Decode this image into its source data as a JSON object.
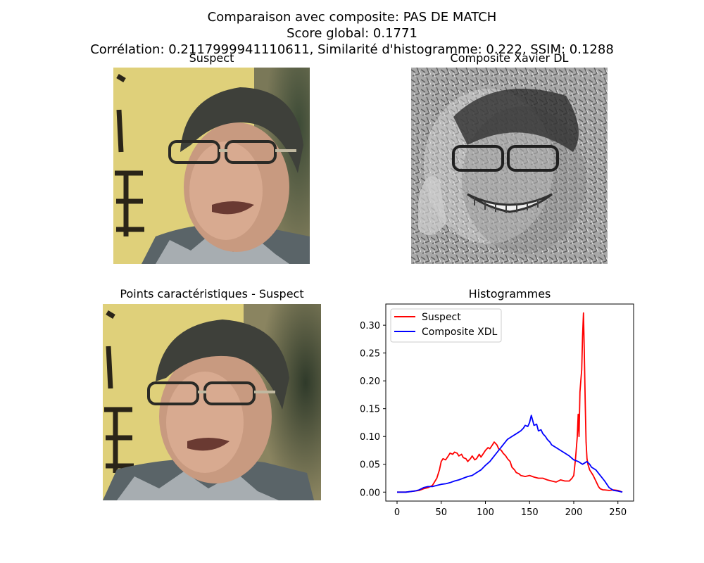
{
  "figure": {
    "title_line1": "Comparaison avec composite: PAS DE MATCH",
    "title_line2": "Score global: 0.1771",
    "title_line3": "Corrélation: 0.2117999941110611, Similarité d'histogramme: 0.222, SSIM: 0.1288"
  },
  "panels": {
    "suspect_title": "Suspect",
    "composite_title": "Composite Xavier DL",
    "keypoints_title": "Points caractéristiques - Suspect",
    "histogram_title": "Histogrammes"
  },
  "colors": {
    "suspect_line": "#ff0000",
    "composite_line": "#0000ff",
    "wall_yellow": "#dfd07a"
  },
  "chart_data": {
    "type": "line",
    "title": "Histogrammes",
    "xlabel": "",
    "ylabel": "",
    "xlim": [
      -12.75,
      267.75
    ],
    "ylim": [
      -0.0161,
      0.3381
    ],
    "xticks": [
      0,
      50,
      100,
      150,
      200,
      250
    ],
    "yticks": [
      0.0,
      0.05,
      0.1,
      0.15,
      0.2,
      0.25,
      0.3
    ],
    "ytick_labels": [
      "0.00",
      "0.05",
      "0.10",
      "0.15",
      "0.20",
      "0.25",
      "0.30"
    ],
    "grid": false,
    "legend_position": "upper-left",
    "series": [
      {
        "name": "Suspect",
        "color": "#ff0000",
        "x": [
          0,
          10,
          20,
          25,
          30,
          35,
          40,
          45,
          48,
          50,
          52,
          55,
          58,
          60,
          63,
          65,
          68,
          70,
          73,
          75,
          78,
          80,
          83,
          85,
          88,
          90,
          93,
          95,
          98,
          100,
          103,
          105,
          108,
          110,
          113,
          115,
          118,
          120,
          123,
          125,
          128,
          130,
          133,
          135,
          138,
          140,
          145,
          150,
          155,
          160,
          165,
          170,
          175,
          180,
          185,
          190,
          195,
          198,
          200,
          202,
          204,
          205,
          206,
          207,
          208,
          209,
          210,
          211,
          212,
          213,
          214,
          215,
          216,
          218,
          220,
          222,
          225,
          228,
          230,
          233,
          235,
          240,
          245,
          250,
          252,
          255
        ],
        "y": [
          0.0,
          0.0,
          0.002,
          0.003,
          0.006,
          0.008,
          0.012,
          0.025,
          0.04,
          0.055,
          0.06,
          0.058,
          0.065,
          0.07,
          0.068,
          0.072,
          0.07,
          0.065,
          0.068,
          0.062,
          0.06,
          0.055,
          0.06,
          0.065,
          0.058,
          0.06,
          0.068,
          0.063,
          0.07,
          0.075,
          0.08,
          0.078,
          0.085,
          0.09,
          0.085,
          0.078,
          0.075,
          0.07,
          0.065,
          0.06,
          0.055,
          0.045,
          0.04,
          0.035,
          0.033,
          0.03,
          0.028,
          0.03,
          0.027,
          0.025,
          0.025,
          0.022,
          0.02,
          0.018,
          0.022,
          0.02,
          0.02,
          0.025,
          0.03,
          0.06,
          0.1,
          0.14,
          0.1,
          0.18,
          0.2,
          0.22,
          0.28,
          0.322,
          0.25,
          0.16,
          0.09,
          0.06,
          0.05,
          0.04,
          0.035,
          0.03,
          0.02,
          0.01,
          0.006,
          0.004,
          0.004,
          0.003,
          0.004,
          0.003,
          0.002,
          0.0
        ]
      },
      {
        "name": "Composite XDL",
        "color": "#0000ff",
        "x": [
          0,
          10,
          20,
          25,
          30,
          35,
          40,
          45,
          50,
          55,
          60,
          65,
          70,
          75,
          80,
          85,
          90,
          95,
          100,
          105,
          110,
          115,
          120,
          125,
          130,
          135,
          140,
          143,
          145,
          148,
          150,
          152,
          155,
          158,
          160,
          163,
          165,
          168,
          170,
          173,
          175,
          180,
          185,
          190,
          195,
          200,
          205,
          210,
          215,
          218,
          220,
          225,
          230,
          235,
          240,
          245,
          250,
          255
        ],
        "y": [
          0.0,
          0.0,
          0.002,
          0.004,
          0.008,
          0.01,
          0.01,
          0.012,
          0.014,
          0.015,
          0.017,
          0.02,
          0.022,
          0.025,
          0.028,
          0.03,
          0.035,
          0.04,
          0.048,
          0.055,
          0.065,
          0.075,
          0.085,
          0.095,
          0.1,
          0.105,
          0.11,
          0.115,
          0.12,
          0.118,
          0.125,
          0.138,
          0.12,
          0.122,
          0.11,
          0.112,
          0.105,
          0.1,
          0.095,
          0.09,
          0.085,
          0.08,
          0.075,
          0.07,
          0.065,
          0.058,
          0.055,
          0.05,
          0.055,
          0.05,
          0.045,
          0.04,
          0.03,
          0.02,
          0.008,
          0.003,
          0.002,
          0.0
        ]
      }
    ]
  }
}
